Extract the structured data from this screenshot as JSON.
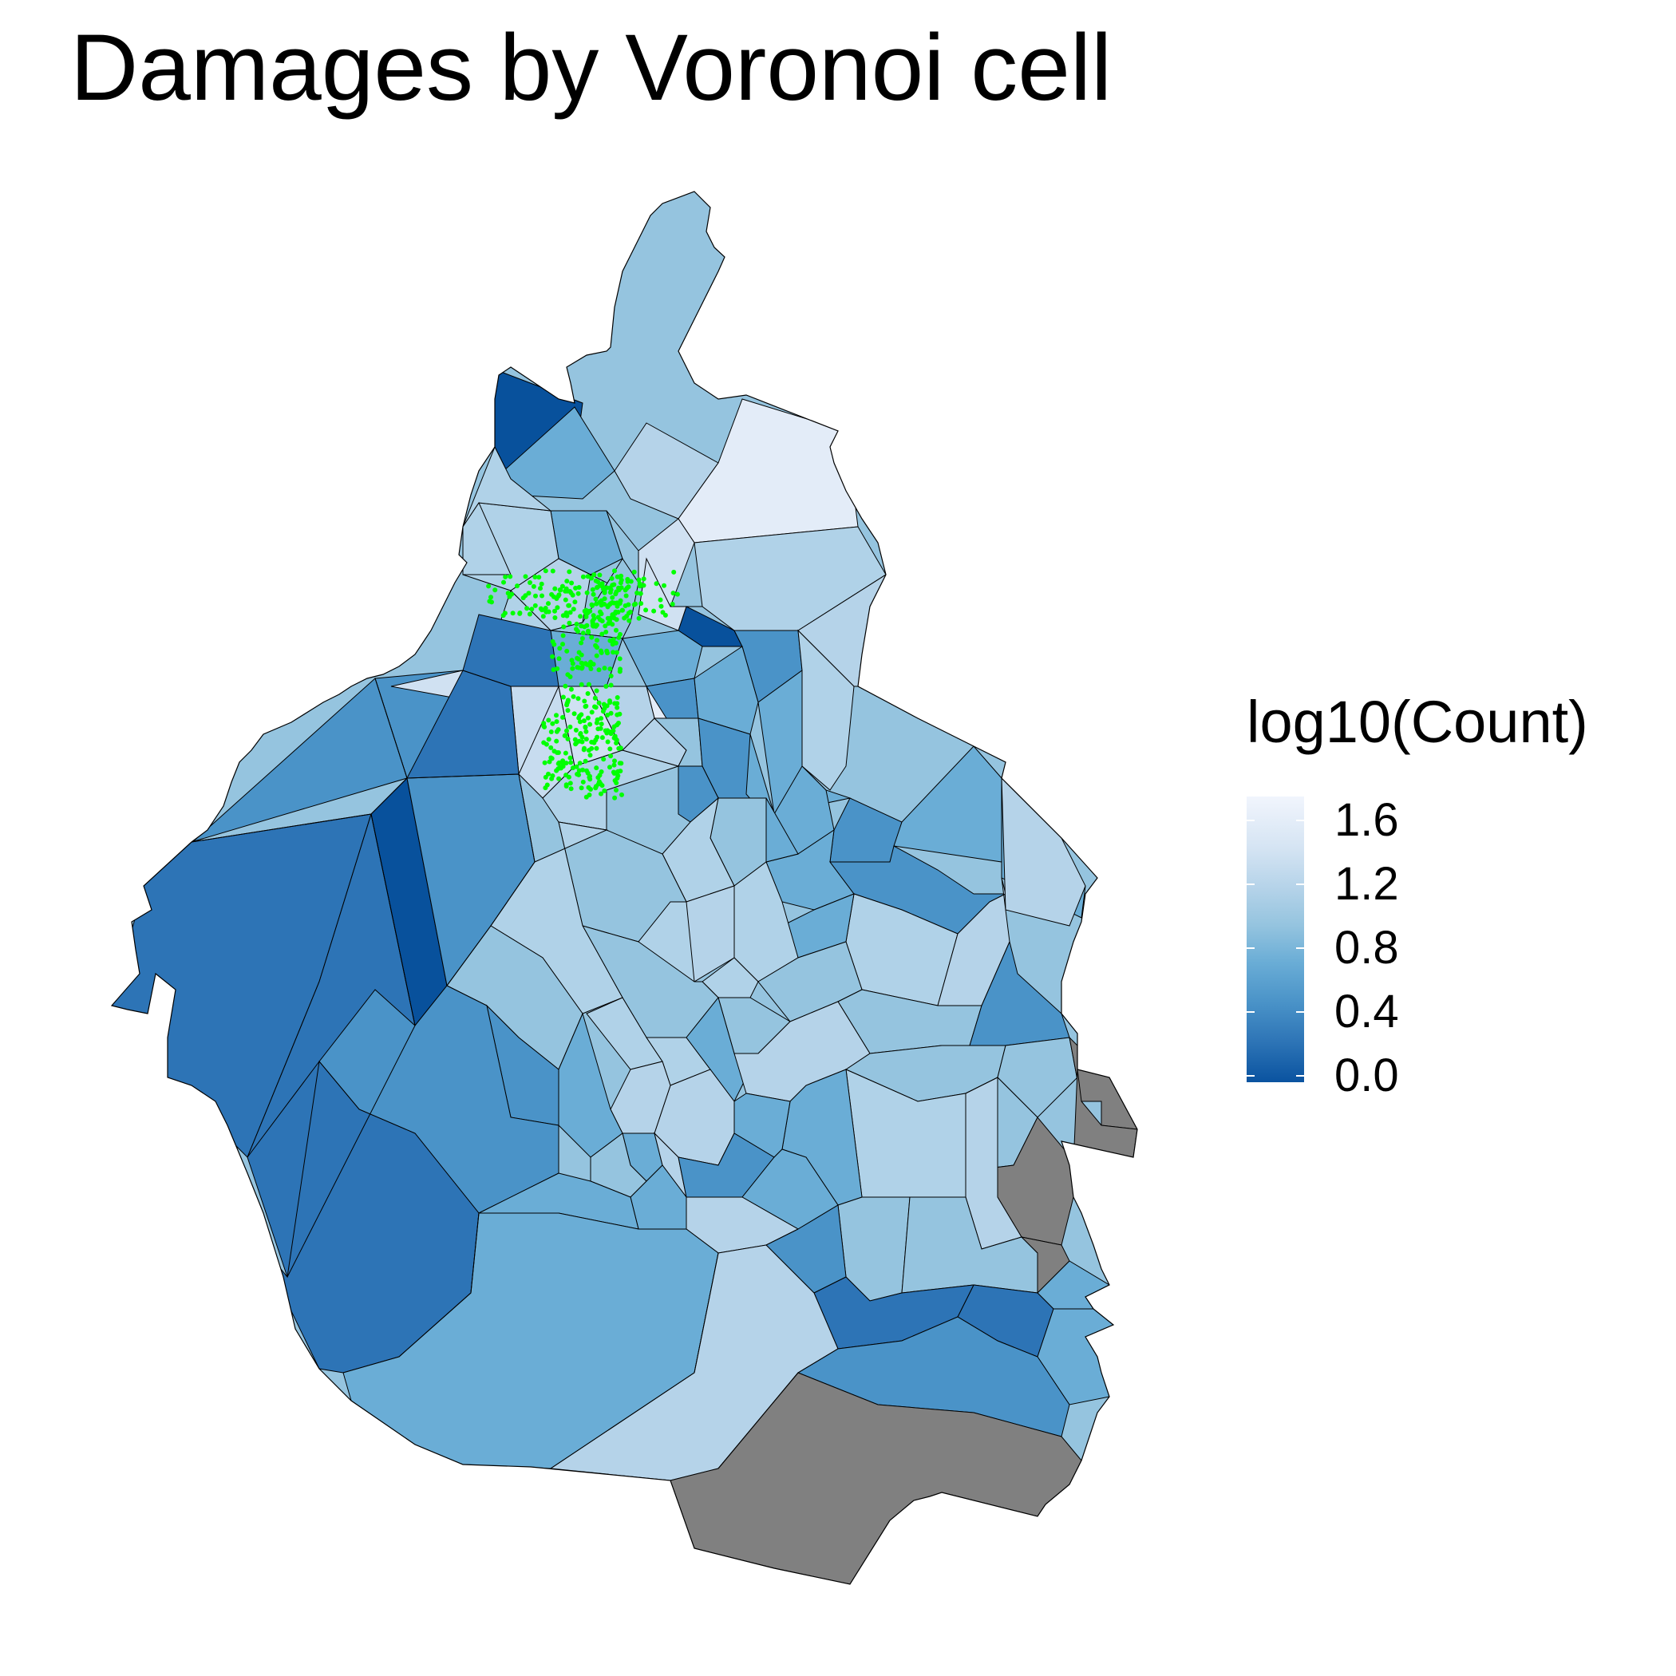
{
  "title": "Damages by Voronoi cell",
  "legend": {
    "title": "log10(Count)",
    "breaks": [
      "1.6",
      "1.2",
      "0.8",
      "0.4",
      "0.0"
    ],
    "range": [
      0.0,
      1.75
    ],
    "color_low": "#08519c",
    "color_high": "#eff3ff"
  },
  "colors": {
    "missing": "#808080",
    "points": "#00ff00",
    "border": "#000000"
  }
}
